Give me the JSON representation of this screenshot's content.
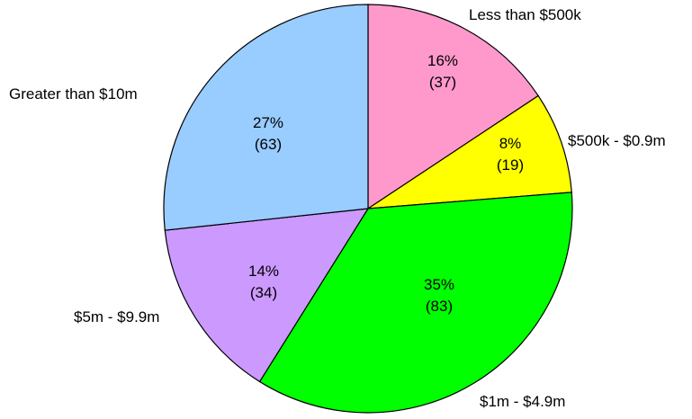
{
  "chart_data": {
    "type": "pie",
    "slices": [
      {
        "label": "Less than $500k",
        "percent_text": "16%",
        "count_text": "(37)",
        "value": 37,
        "color": "#FF99CC"
      },
      {
        "label": "$500k - $0.9m",
        "percent_text": "8%",
        "count_text": "(19)",
        "value": 19,
        "color": "#FFFF00"
      },
      {
        "label": "$1m - $4.9m",
        "percent_text": "35%",
        "count_text": "(83)",
        "value": 83,
        "color": "#00FF00"
      },
      {
        "label": "$5m - $9.9m",
        "percent_text": "14%",
        "count_text": "(34)",
        "value": 34,
        "color": "#CC99FF"
      },
      {
        "label": "Greater than $10m",
        "percent_text": "27%",
        "count_text": "(63)",
        "value": 63,
        "color": "#99CCFF"
      }
    ],
    "start": "12 o'clock",
    "direction": "clockwise",
    "legend": "none",
    "slice_border_color": "#000000"
  }
}
